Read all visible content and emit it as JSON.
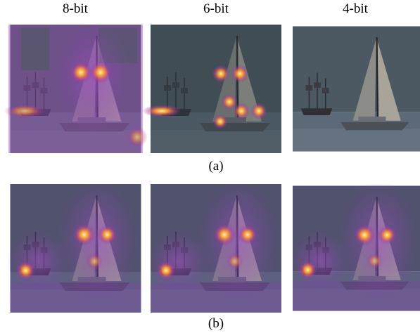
{
  "columns": [
    "8-bit",
    "6-bit",
    "4-bit"
  ],
  "rows": [
    "(a)",
    "(b)"
  ]
}
